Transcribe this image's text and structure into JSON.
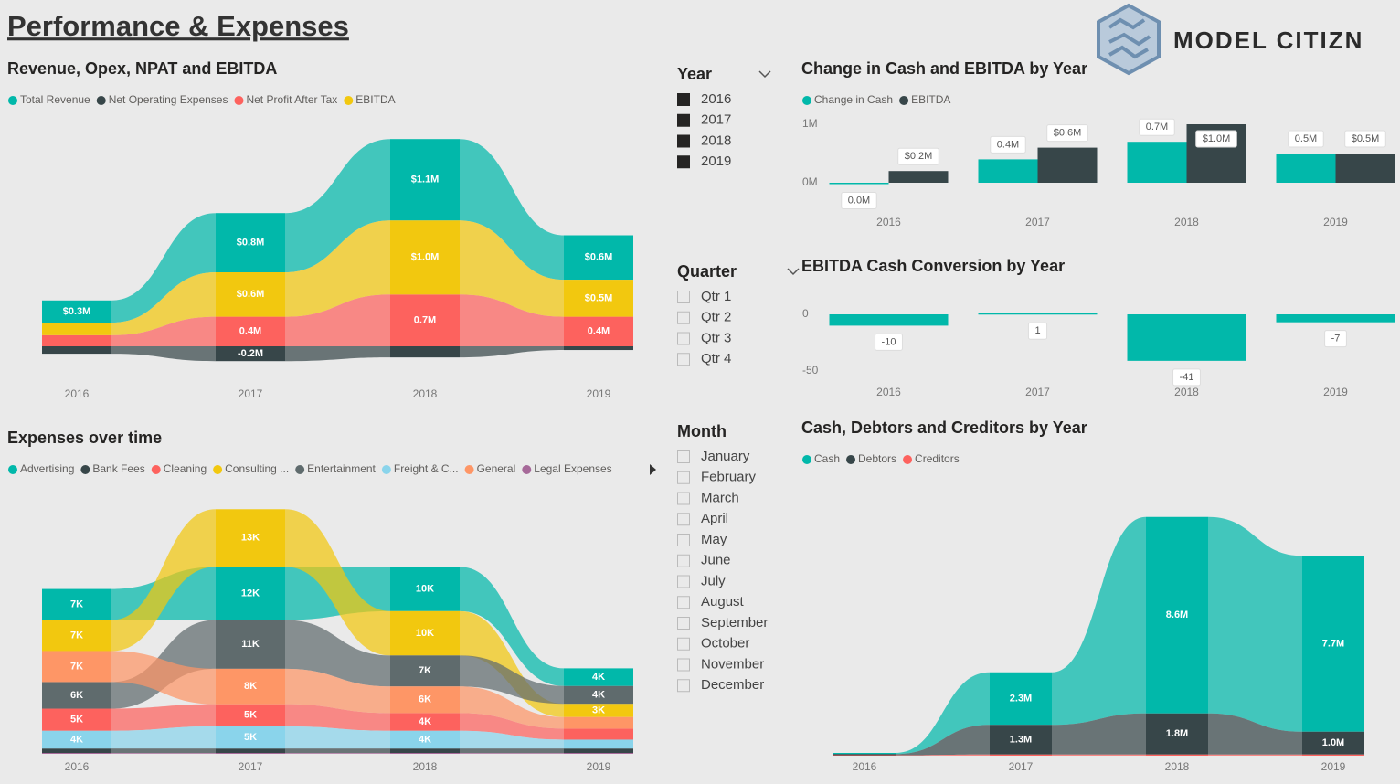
{
  "title": "Performance & Expenses",
  "logo": "MODEL CITIZN",
  "slicers": [
    {
      "title": "Year",
      "checked": true,
      "items": [
        "2016",
        "2017",
        "2018",
        "2019"
      ]
    },
    {
      "title": "Quarter",
      "checked": false,
      "items": [
        "Qtr 1",
        "Qtr 2",
        "Qtr 3",
        "Qtr 4"
      ]
    },
    {
      "title": "Month",
      "checked": false,
      "items": [
        "January",
        "February",
        "March",
        "April",
        "May",
        "June",
        "July",
        "August",
        "September",
        "October",
        "November",
        "December"
      ]
    }
  ],
  "chart_data": [
    {
      "type": "ribbon",
      "title": "Revenue, Opex, NPAT and EBITDA",
      "categories": [
        "2016",
        "2017",
        "2018",
        "2019"
      ],
      "series": [
        {
          "name": "Total Revenue",
          "color": "#01b8aa",
          "values": [
            0.3,
            0.8,
            1.1,
            0.6
          ],
          "value_labels": [
            "$0.3M",
            "$0.8M",
            "$1.1M",
            "$0.6M"
          ]
        },
        {
          "name": "Net Operating Expenses",
          "color": "#374649",
          "values": [
            -0.1,
            -0.2,
            -0.15,
            -0.05
          ],
          "value_labels": [
            null,
            "-0.2M",
            null,
            null
          ]
        },
        {
          "name": "Net Profit After Tax",
          "color": "#fd625e",
          "values": [
            0.15,
            0.4,
            0.7,
            0.4
          ],
          "value_labels": [
            null,
            "0.4M",
            "0.7M",
            "0.4M"
          ]
        },
        {
          "name": "EBITDA",
          "color": "#f2c80f",
          "values": [
            0.17,
            0.6,
            1.0,
            0.5
          ],
          "value_labels": [
            null,
            "$0.6M",
            "$1.0M",
            "$0.5M"
          ]
        }
      ]
    },
    {
      "type": "bar",
      "title": "Change in Cash and EBITDA by Year",
      "categories": [
        "2016",
        "2017",
        "2018",
        "2019"
      ],
      "series": [
        {
          "name": "Change in Cash",
          "color": "#01b8aa",
          "values": [
            0.0,
            0.4,
            0.7,
            0.5
          ],
          "value_labels": [
            "0.0M",
            "0.4M",
            "0.7M",
            "0.5M"
          ]
        },
        {
          "name": "EBITDA",
          "color": "#374649",
          "values": [
            0.2,
            0.6,
            1.0,
            0.5
          ],
          "value_labels": [
            "$0.2M",
            "$0.6M",
            "$1.0M",
            "$0.5M"
          ]
        }
      ],
      "ylim": [
        0,
        1
      ],
      "yticks": [
        {
          "value": 0,
          "label": "0M"
        },
        {
          "value": 1,
          "label": "1M"
        }
      ]
    },
    {
      "type": "bar",
      "title": "EBITDA Cash Conversion by Year",
      "categories": [
        "2016",
        "2017",
        "2018",
        "2019"
      ],
      "values": [
        -10,
        1,
        -41,
        -7
      ],
      "color": "#01b8aa",
      "ylim": [
        -52,
        15
      ],
      "yticks": [
        0,
        -50
      ]
    },
    {
      "type": "ribbon",
      "title": "Expenses over time",
      "categories": [
        "2016",
        "2017",
        "2018",
        "2019"
      ],
      "series": [
        {
          "name": "Advertising",
          "color": "#01b8aa",
          "values": [
            7,
            12,
            10,
            4
          ],
          "value_labels": [
            "7K",
            "12K",
            "10K",
            "4K"
          ]
        },
        {
          "name": "Bank Fees",
          "color": "#374649",
          "values": [
            1,
            1,
            1,
            1
          ]
        },
        {
          "name": "Cleaning",
          "color": "#fd625e",
          "values": [
            5,
            5,
            4,
            2.5
          ],
          "value_labels": [
            "5K",
            "5K",
            "4K",
            null
          ]
        },
        {
          "name": "Consulting ...",
          "color": "#f2c80f",
          "values": [
            7,
            13,
            10,
            3
          ],
          "value_labels": [
            "7K",
            "13K",
            "10K",
            "3K"
          ]
        },
        {
          "name": "Entertainment",
          "color": "#5f6b6d",
          "values": [
            6,
            11,
            7,
            4
          ],
          "value_labels": [
            "6K",
            "11K",
            "7K",
            "4K"
          ]
        },
        {
          "name": "Freight & C...",
          "color": "#8ad4eb",
          "values": [
            4,
            5,
            4,
            2
          ],
          "value_labels": [
            "4K",
            "5K",
            "4K",
            null
          ]
        },
        {
          "name": "General",
          "color": "#fe9666",
          "values": [
            7,
            8,
            6,
            2.6
          ],
          "value_labels": [
            "7K",
            "8K",
            "6K",
            null
          ]
        },
        {
          "name": "Legal Expenses",
          "color": "#a66999",
          "values": [
            0.2,
            0.2,
            0.2,
            0.2
          ]
        }
      ]
    },
    {
      "type": "ribbon",
      "title": "Cash, Debtors and Creditors by Year",
      "categories": [
        "2016",
        "2017",
        "2018",
        "2019"
      ],
      "series": [
        {
          "name": "Cash",
          "color": "#01b8aa",
          "values": [
            0.05,
            2.3,
            8.6,
            7.7
          ],
          "value_labels": [
            null,
            "2.3M",
            "8.6M",
            "7.7M"
          ]
        },
        {
          "name": "Debtors",
          "color": "#374649",
          "values": [
            0.05,
            1.3,
            1.8,
            1.0
          ],
          "value_labels": [
            null,
            "1.3M",
            "1.8M",
            "1.0M"
          ]
        },
        {
          "name": "Creditors",
          "color": "#fd625e",
          "values": [
            0.02,
            0.05,
            0.05,
            0.05
          ]
        }
      ]
    }
  ]
}
